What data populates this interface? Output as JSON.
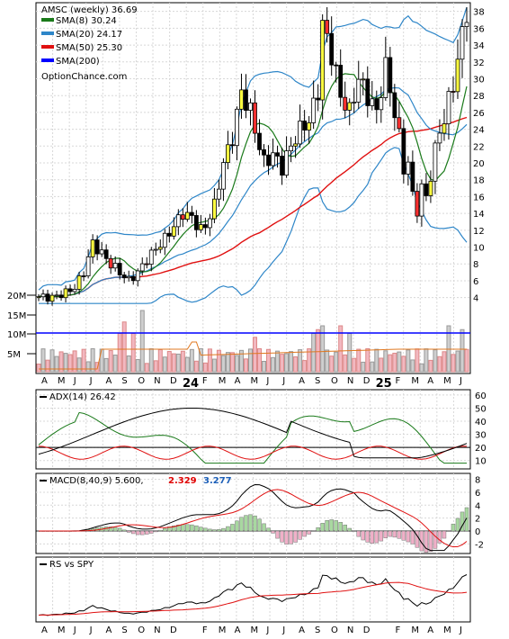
{
  "chart_data": [
    {
      "type": "candlestick",
      "title": "AMSC (weekly) 36.69",
      "legend": [
        {
          "label": "SMA(8) 30.24",
          "color": "#1a7a1a"
        },
        {
          "label": "SMA(20) 24.17",
          "color": "#2e86c8"
        },
        {
          "label": "SMA(50) 25.30",
          "color": "#e01010"
        },
        {
          "label": "SMA(200)",
          "color": "#0000ff"
        },
        {
          "label": "OptionChance.com",
          "color": null
        }
      ],
      "x_labels": [
        "A",
        "M",
        "J",
        "J",
        "A",
        "S",
        "O",
        "N",
        "D",
        "24",
        "F",
        "M",
        "A",
        "M",
        "J",
        "J",
        "A",
        "S",
        "O",
        "N",
        "D",
        "25",
        "F",
        "M",
        "A",
        "M",
        "J"
      ],
      "y_ticks": [
        4,
        6,
        8,
        10,
        12,
        14,
        16,
        18,
        20,
        22,
        24,
        26,
        28,
        30,
        32,
        34,
        36,
        38
      ],
      "ylim": [
        3,
        38.5
      ],
      "price_path": [
        [
          0,
          4.1
        ],
        [
          3,
          4.0
        ],
        [
          6,
          4.6
        ],
        [
          8,
          5.2
        ],
        [
          10,
          7.0
        ],
        [
          12,
          10.5
        ],
        [
          14,
          9.2
        ],
        [
          16,
          8.0
        ],
        [
          18,
          7.0
        ],
        [
          20,
          6.0
        ],
        [
          22,
          7.0
        ],
        [
          24,
          8.5
        ],
        [
          26,
          9.8
        ],
        [
          28,
          11.0
        ],
        [
          30,
          12.5
        ],
        [
          32,
          14.0
        ],
        [
          34,
          13.5
        ],
        [
          36,
          12.0
        ],
        [
          37,
          12.5
        ],
        [
          39,
          15.0
        ],
        [
          41,
          20.0
        ],
        [
          43,
          23.0
        ],
        [
          45,
          28.5
        ],
        [
          47,
          26.0
        ],
        [
          49,
          22.0
        ],
        [
          50,
          20.0
        ],
        [
          52,
          21.0
        ],
        [
          54,
          19.5
        ],
        [
          56,
          22.0
        ],
        [
          58,
          24.0
        ],
        [
          60,
          25.0
        ],
        [
          62,
          28.5
        ],
        [
          63,
          36.5
        ],
        [
          65,
          33.0
        ],
        [
          67,
          28.0
        ],
        [
          69,
          26.0
        ],
        [
          71,
          30.0
        ],
        [
          73,
          28.0
        ],
        [
          75,
          26.0
        ],
        [
          77,
          31.5
        ],
        [
          79,
          26.0
        ],
        [
          80,
          23.0
        ],
        [
          81,
          19.5
        ],
        [
          82,
          20.0
        ],
        [
          83,
          16.0
        ],
        [
          84,
          14.5
        ],
        [
          85,
          17.0
        ],
        [
          86,
          16.0
        ],
        [
          87,
          18.5
        ],
        [
          88,
          21.5
        ],
        [
          89,
          24.0
        ],
        [
          90,
          25.0
        ],
        [
          91,
          27.5
        ],
        [
          92,
          29.5
        ],
        [
          93,
          32.0
        ],
        [
          94,
          35.5
        ],
        [
          95,
          36.7
        ]
      ],
      "volume_ticks": [
        "20M",
        "15M",
        "10M",
        "5M"
      ]
    },
    {
      "type": "line",
      "label": "ADX(14) 26.42",
      "y_ticks": [
        10,
        20,
        30,
        40,
        50,
        60
      ],
      "ylim": [
        5,
        62
      ]
    },
    {
      "type": "line+bar",
      "label": "MACD(8,40,9) 5.600,",
      "values": [
        "2.329",
        "3.277"
      ],
      "value_colors": [
        "#e00000",
        "#1c5fb8"
      ],
      "y_ticks": [
        -2,
        0,
        2,
        4,
        6,
        8
      ],
      "ylim": [
        -3.2,
        8.5
      ]
    },
    {
      "type": "line",
      "label": "RS vs SPY"
    }
  ]
}
